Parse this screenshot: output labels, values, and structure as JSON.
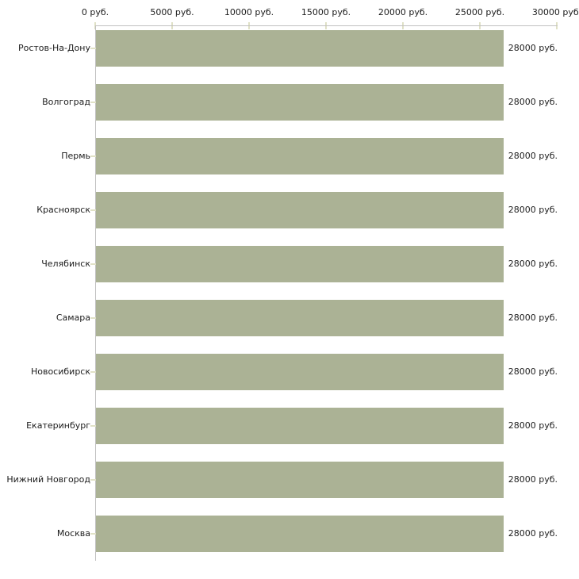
{
  "chart_data": {
    "type": "bar",
    "orientation": "horizontal",
    "categories": [
      "Ростов-На-Дону",
      "Волгоград",
      "Пермь",
      "Красноярск",
      "Челябинск",
      "Самара",
      "Новосибирск",
      "Екатеринбург",
      "Нижний Новгород",
      "Москва"
    ],
    "values": [
      28000,
      28000,
      28000,
      28000,
      28000,
      28000,
      28000,
      28000,
      28000,
      28000
    ],
    "value_labels": [
      "28000 руб.",
      "28000 руб.",
      "28000 руб.",
      "28000 руб.",
      "28000 руб.",
      "28000 руб.",
      "28000 руб.",
      "28000 руб.",
      "28000 руб.",
      "28000 руб."
    ],
    "x_tick_labels": [
      "0 руб.",
      "5000 руб.",
      "10000 руб.",
      "15000 руб.",
      "20000 руб.",
      "25000 руб.",
      "30000 руб."
    ],
    "x_tick_values": [
      0,
      5000,
      10000,
      15000,
      20000,
      25000,
      30000
    ],
    "xlim": [
      0,
      30000
    ],
    "unit": "руб.",
    "title": "",
    "xlabel": "",
    "ylabel": "",
    "grid": "off",
    "legend": "none",
    "bar_color": "#abb295",
    "axis_color": "#c1c1c1",
    "tick_color": "#e0e1c6",
    "text_color": "#1c1c1c",
    "background_color": "#ffffff"
  }
}
